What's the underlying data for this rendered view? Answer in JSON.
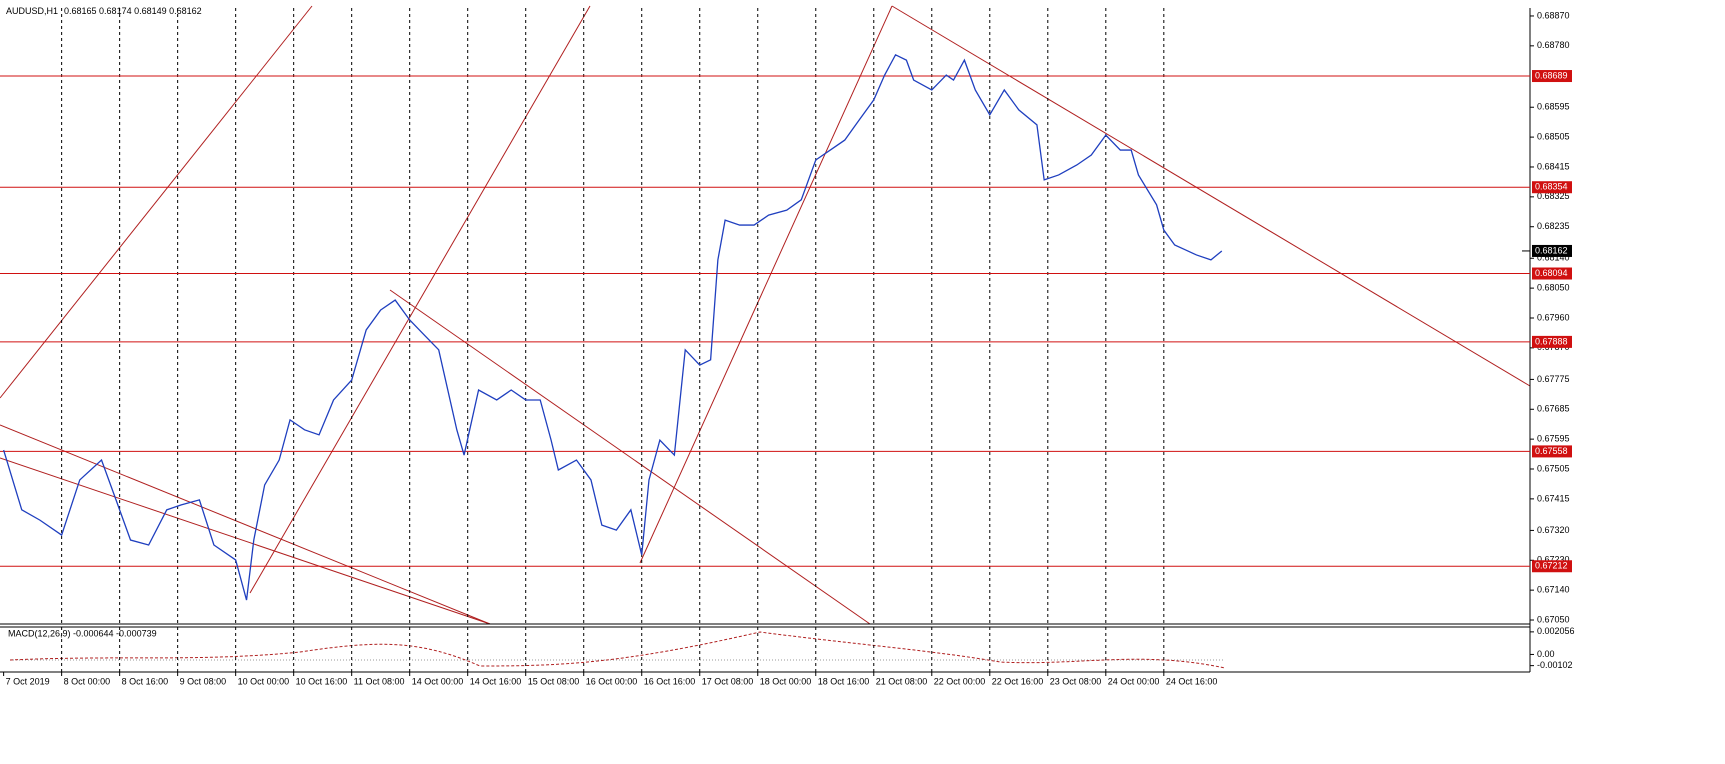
{
  "chart_data": {
    "type": "line",
    "title": "AUDUSD,H1",
    "subtitle": "0.68165 0.68174 0.68149 0.68162",
    "series": [
      {
        "name": "AUDUSD",
        "color": "#1f3fbf",
        "x": [
          1,
          6,
          11,
          17,
          22,
          28,
          32,
          36,
          41,
          46,
          50,
          55,
          59,
          65,
          68,
          70,
          73,
          77,
          80,
          84,
          88,
          92,
          97,
          101,
          105,
          109,
          113,
          117,
          121,
          126,
          128,
          132,
          137,
          141,
          145,
          149,
          152,
          154,
          159,
          163,
          166,
          170,
          174,
          177,
          179,
          182,
          186,
          189,
          193,
          196,
          198,
          200,
          204,
          208,
          212,
          217,
          221,
          225,
          229,
          233,
          237,
          241,
          244,
          247,
          250,
          252,
          257,
          261,
          263,
          266,
          269,
          273,
          277,
          281,
          286,
          288,
          292,
          297,
          301,
          305,
          309,
          312,
          314,
          319,
          321,
          324,
          327,
          330,
          334,
          337
        ],
        "values": [
          0.67562,
          0.67382,
          0.67351,
          0.67306,
          0.67472,
          0.67532,
          0.67412,
          0.67291,
          0.67276,
          0.67382,
          0.67397,
          0.67412,
          0.67276,
          0.67231,
          0.6711,
          0.67291,
          0.67457,
          0.67532,
          0.67653,
          0.67623,
          0.67608,
          0.67713,
          0.67773,
          0.67924,
          0.67984,
          0.68014,
          0.67954,
          0.67909,
          0.67864,
          0.67623,
          0.67547,
          0.67743,
          0.67713,
          0.67743,
          0.67713,
          0.67713,
          0.67592,
          0.67502,
          0.67532,
          0.67472,
          0.67336,
          0.67321,
          0.67382,
          0.67246,
          0.67472,
          0.67592,
          0.67547,
          0.67864,
          0.67818,
          0.67834,
          0.68135,
          0.68255,
          0.6824,
          0.6824,
          0.6827,
          0.68285,
          0.68316,
          0.68436,
          0.68466,
          0.68496,
          0.68557,
          0.68617,
          0.68692,
          0.68753,
          0.68737,
          0.68677,
          0.68647,
          0.68692,
          0.68677,
          0.68737,
          0.68647,
          0.68572,
          0.68647,
          0.68587,
          0.68542,
          0.68376,
          0.68391,
          0.68421,
          0.68451,
          0.68511,
          0.68466,
          0.68466,
          0.68391,
          0.68301,
          0.68225,
          0.6818,
          0.68165,
          0.6815,
          0.68135,
          0.68162
        ]
      }
    ],
    "levels": [
      {
        "value": 0.68689,
        "label": "0.68689"
      },
      {
        "value": 0.68354,
        "label": "0.68354"
      },
      {
        "value": 0.68094,
        "label": "0.68094"
      },
      {
        "value": 0.67888,
        "label": "0.67888"
      },
      {
        "value": 0.67558,
        "label": "0.67558"
      },
      {
        "value": 0.67212,
        "label": "0.67212"
      }
    ],
    "level_color": "#d01010",
    "current_price": {
      "value": 0.68162,
      "label": "0.68162"
    },
    "xlim": [
      0,
      422
    ],
    "ylim": [
      0.67038,
      0.68894
    ],
    "yticks": [
      {
        "value": 0.6887,
        "label": "0.68870"
      },
      {
        "value": 0.6878,
        "label": "0.68780"
      },
      {
        "value": 0.68595,
        "label": "0.68595"
      },
      {
        "value": 0.68505,
        "label": "0.68505"
      },
      {
        "value": 0.68415,
        "label": "0.68415"
      },
      {
        "value": 0.68325,
        "label": "0.68325"
      },
      {
        "value": 0.68235,
        "label": "0.68235"
      },
      {
        "value": 0.6814,
        "label": "0.68140"
      },
      {
        "value": 0.6805,
        "label": "0.68050"
      },
      {
        "value": 0.6796,
        "label": "0.67960"
      },
      {
        "value": 0.6787,
        "label": "0.67870"
      },
      {
        "value": 0.67775,
        "label": "0.67775"
      },
      {
        "value": 0.67685,
        "label": "0.67685"
      },
      {
        "value": 0.67595,
        "label": "0.67595"
      },
      {
        "value": 0.67505,
        "label": "0.67505"
      },
      {
        "value": 0.67415,
        "label": "0.67415"
      },
      {
        "value": 0.6732,
        "label": "0.67320"
      },
      {
        "value": 0.6723,
        "label": "0.67230"
      },
      {
        "value": 0.6714,
        "label": "0.67140"
      },
      {
        "value": 0.6705,
        "label": "0.67050"
      }
    ],
    "xticks": [
      {
        "value": 1,
        "label": "7 Oct 2019"
      },
      {
        "value": 17,
        "label": "8 Oct 00:00"
      },
      {
        "value": 33,
        "label": "8 Oct 16:00"
      },
      {
        "value": 49,
        "label": "9 Oct 08:00"
      },
      {
        "value": 65,
        "label": "10 Oct 00:00"
      },
      {
        "value": 81,
        "label": "10 Oct 16:00"
      },
      {
        "value": 97,
        "label": "11 Oct 08:00"
      },
      {
        "value": 113,
        "label": "14 Oct 00:00"
      },
      {
        "value": 129,
        "label": "14 Oct 16:00"
      },
      {
        "value": 145,
        "label": "15 Oct 08:00"
      },
      {
        "value": 161,
        "label": "16 Oct 00:00"
      },
      {
        "value": 177,
        "label": "16 Oct 16:00"
      },
      {
        "value": 193,
        "label": "17 Oct 08:00"
      },
      {
        "value": 209,
        "label": "18 Oct 00:00"
      },
      {
        "value": 225,
        "label": "18 Oct 16:00"
      },
      {
        "value": 241,
        "label": "21 Oct 08:00"
      },
      {
        "value": 257,
        "label": "22 Oct 00:00"
      },
      {
        "value": 273,
        "label": "22 Oct 16:00"
      },
      {
        "value": 289,
        "label": "23 Oct 08:00"
      },
      {
        "value": 305,
        "label": "24 Oct 00:00"
      },
      {
        "value": 321,
        "label": "24 Oct 16:00"
      }
    ],
    "grid": true,
    "macd": {
      "title": "MACD(12,26,9) -0.000644 -0.000739",
      "ylim": [
        -0.0016,
        0.0025
      ],
      "yticks": [
        {
          "value": 0.002056,
          "label": "0.002056"
        },
        {
          "value": 0,
          "label": "0.00"
        },
        {
          "value": -0.00102,
          "label": "-0.00102"
        }
      ]
    }
  }
}
